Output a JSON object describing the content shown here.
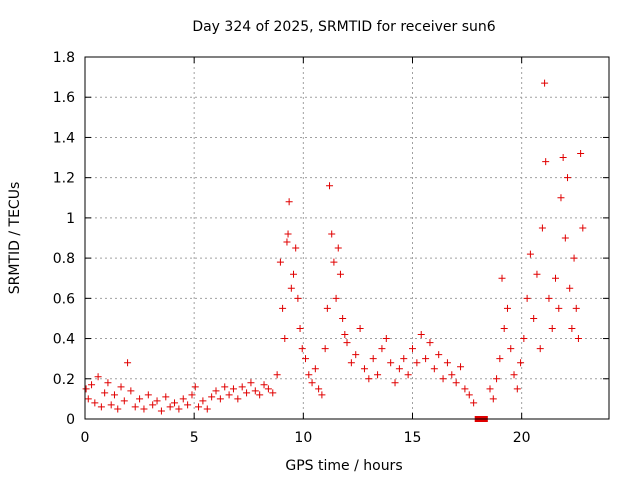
{
  "chart_data": {
    "type": "scatter",
    "title": "Day 324 of 2025, SRMTID for receiver sun6",
    "xlabel": "GPS time / hours",
    "ylabel": "SRMTID / TECUs",
    "xlim": [
      0,
      24
    ],
    "ylim": [
      0,
      1.8
    ],
    "xticks": [
      0,
      5,
      10,
      15,
      20
    ],
    "xtick_labels": [
      "0",
      "5",
      "10",
      "15",
      "20"
    ],
    "yticks": [
      0,
      0.2,
      0.4,
      0.6,
      0.8,
      1.0,
      1.2,
      1.4,
      1.6,
      1.8
    ],
    "ytick_labels": [
      "0",
      "0.2",
      "0.4",
      "0.6",
      "0.8",
      "1",
      "1.2",
      "1.4",
      "1.6",
      "1.8"
    ],
    "grid": true,
    "marker": "+",
    "series": [
      {
        "name": "SRMTID",
        "color": "#e00000",
        "points": [
          [
            0.05,
            0.15
          ],
          [
            0.15,
            0.1
          ],
          [
            0.3,
            0.17
          ],
          [
            0.45,
            0.08
          ],
          [
            0.6,
            0.21
          ],
          [
            0.75,
            0.06
          ],
          [
            0.9,
            0.13
          ],
          [
            1.05,
            0.18
          ],
          [
            1.2,
            0.07
          ],
          [
            1.35,
            0.12
          ],
          [
            1.5,
            0.05
          ],
          [
            1.65,
            0.16
          ],
          [
            1.8,
            0.09
          ],
          [
            1.95,
            0.28
          ],
          [
            2.1,
            0.14
          ],
          [
            2.3,
            0.06
          ],
          [
            2.5,
            0.1
          ],
          [
            2.7,
            0.05
          ],
          [
            2.9,
            0.12
          ],
          [
            3.1,
            0.07
          ],
          [
            3.3,
            0.09
          ],
          [
            3.5,
            0.04
          ],
          [
            3.7,
            0.11
          ],
          [
            3.9,
            0.06
          ],
          [
            4.1,
            0.08
          ],
          [
            4.3,
            0.05
          ],
          [
            4.5,
            0.1
          ],
          [
            4.7,
            0.07
          ],
          [
            4.9,
            0.12
          ],
          [
            5.05,
            0.16
          ],
          [
            5.2,
            0.06
          ],
          [
            5.4,
            0.09
          ],
          [
            5.6,
            0.05
          ],
          [
            5.8,
            0.11
          ],
          [
            6.0,
            0.14
          ],
          [
            6.2,
            0.1
          ],
          [
            6.4,
            0.16
          ],
          [
            6.6,
            0.12
          ],
          [
            6.8,
            0.15
          ],
          [
            7.0,
            0.1
          ],
          [
            7.2,
            0.16
          ],
          [
            7.4,
            0.13
          ],
          [
            7.6,
            0.18
          ],
          [
            7.8,
            0.14
          ],
          [
            8.0,
            0.12
          ],
          [
            8.2,
            0.17
          ],
          [
            8.4,
            0.15
          ],
          [
            8.6,
            0.13
          ],
          [
            8.8,
            0.22
          ],
          [
            8.95,
            0.78
          ],
          [
            9.05,
            0.55
          ],
          [
            9.15,
            0.4
          ],
          [
            9.25,
            0.88
          ],
          [
            9.3,
            0.92
          ],
          [
            9.35,
            1.08
          ],
          [
            9.45,
            0.65
          ],
          [
            9.55,
            0.72
          ],
          [
            9.65,
            0.85
          ],
          [
            9.75,
            0.6
          ],
          [
            9.85,
            0.45
          ],
          [
            9.95,
            0.35
          ],
          [
            10.1,
            0.3
          ],
          [
            10.25,
            0.22
          ],
          [
            10.4,
            0.18
          ],
          [
            10.55,
            0.25
          ],
          [
            10.7,
            0.15
          ],
          [
            10.85,
            0.12
          ],
          [
            11.0,
            0.35
          ],
          [
            11.1,
            0.55
          ],
          [
            11.2,
            1.16
          ],
          [
            11.3,
            0.92
          ],
          [
            11.4,
            0.78
          ],
          [
            11.5,
            0.6
          ],
          [
            11.6,
            0.85
          ],
          [
            11.7,
            0.72
          ],
          [
            11.8,
            0.5
          ],
          [
            11.9,
            0.42
          ],
          [
            12.0,
            0.38
          ],
          [
            12.2,
            0.28
          ],
          [
            12.4,
            0.32
          ],
          [
            12.6,
            0.45
          ],
          [
            12.8,
            0.25
          ],
          [
            13.0,
            0.2
          ],
          [
            13.2,
            0.3
          ],
          [
            13.4,
            0.22
          ],
          [
            13.6,
            0.35
          ],
          [
            13.8,
            0.4
          ],
          [
            14.0,
            0.28
          ],
          [
            14.2,
            0.18
          ],
          [
            14.4,
            0.25
          ],
          [
            14.6,
            0.3
          ],
          [
            14.8,
            0.22
          ],
          [
            15.0,
            0.35
          ],
          [
            15.2,
            0.28
          ],
          [
            15.4,
            0.42
          ],
          [
            15.6,
            0.3
          ],
          [
            15.8,
            0.38
          ],
          [
            16.0,
            0.25
          ],
          [
            16.2,
            0.32
          ],
          [
            16.4,
            0.2
          ],
          [
            16.6,
            0.28
          ],
          [
            16.8,
            0.22
          ],
          [
            17.0,
            0.18
          ],
          [
            17.2,
            0.26
          ],
          [
            17.4,
            0.15
          ],
          [
            17.6,
            0.12
          ],
          [
            17.8,
            0.08
          ],
          [
            18.55,
            0.15
          ],
          [
            18.7,
            0.1
          ],
          [
            18.85,
            0.2
          ],
          [
            19.0,
            0.3
          ],
          [
            19.1,
            0.7
          ],
          [
            19.2,
            0.45
          ],
          [
            19.35,
            0.55
          ],
          [
            19.5,
            0.35
          ],
          [
            19.65,
            0.22
          ],
          [
            19.8,
            0.15
          ],
          [
            19.95,
            0.28
          ],
          [
            20.1,
            0.4
          ],
          [
            20.25,
            0.6
          ],
          [
            20.4,
            0.82
          ],
          [
            20.55,
            0.5
          ],
          [
            20.7,
            0.72
          ],
          [
            20.85,
            0.35
          ],
          [
            20.95,
            0.95
          ],
          [
            21.05,
            1.67
          ],
          [
            21.1,
            1.28
          ],
          [
            21.25,
            0.6
          ],
          [
            21.4,
            0.45
          ],
          [
            21.55,
            0.7
          ],
          [
            21.7,
            0.55
          ],
          [
            21.8,
            1.1
          ],
          [
            21.9,
            1.3
          ],
          [
            22.0,
            0.9
          ],
          [
            22.1,
            1.2
          ],
          [
            22.2,
            0.65
          ],
          [
            22.3,
            0.45
          ],
          [
            22.4,
            0.8
          ],
          [
            22.5,
            0.55
          ],
          [
            22.6,
            0.4
          ],
          [
            22.7,
            1.32
          ],
          [
            22.8,
            0.95
          ]
        ]
      }
    ],
    "gap_marker": {
      "x_start": 17.85,
      "x_end": 18.45,
      "y": 0.0,
      "color": "#e00000"
    }
  }
}
